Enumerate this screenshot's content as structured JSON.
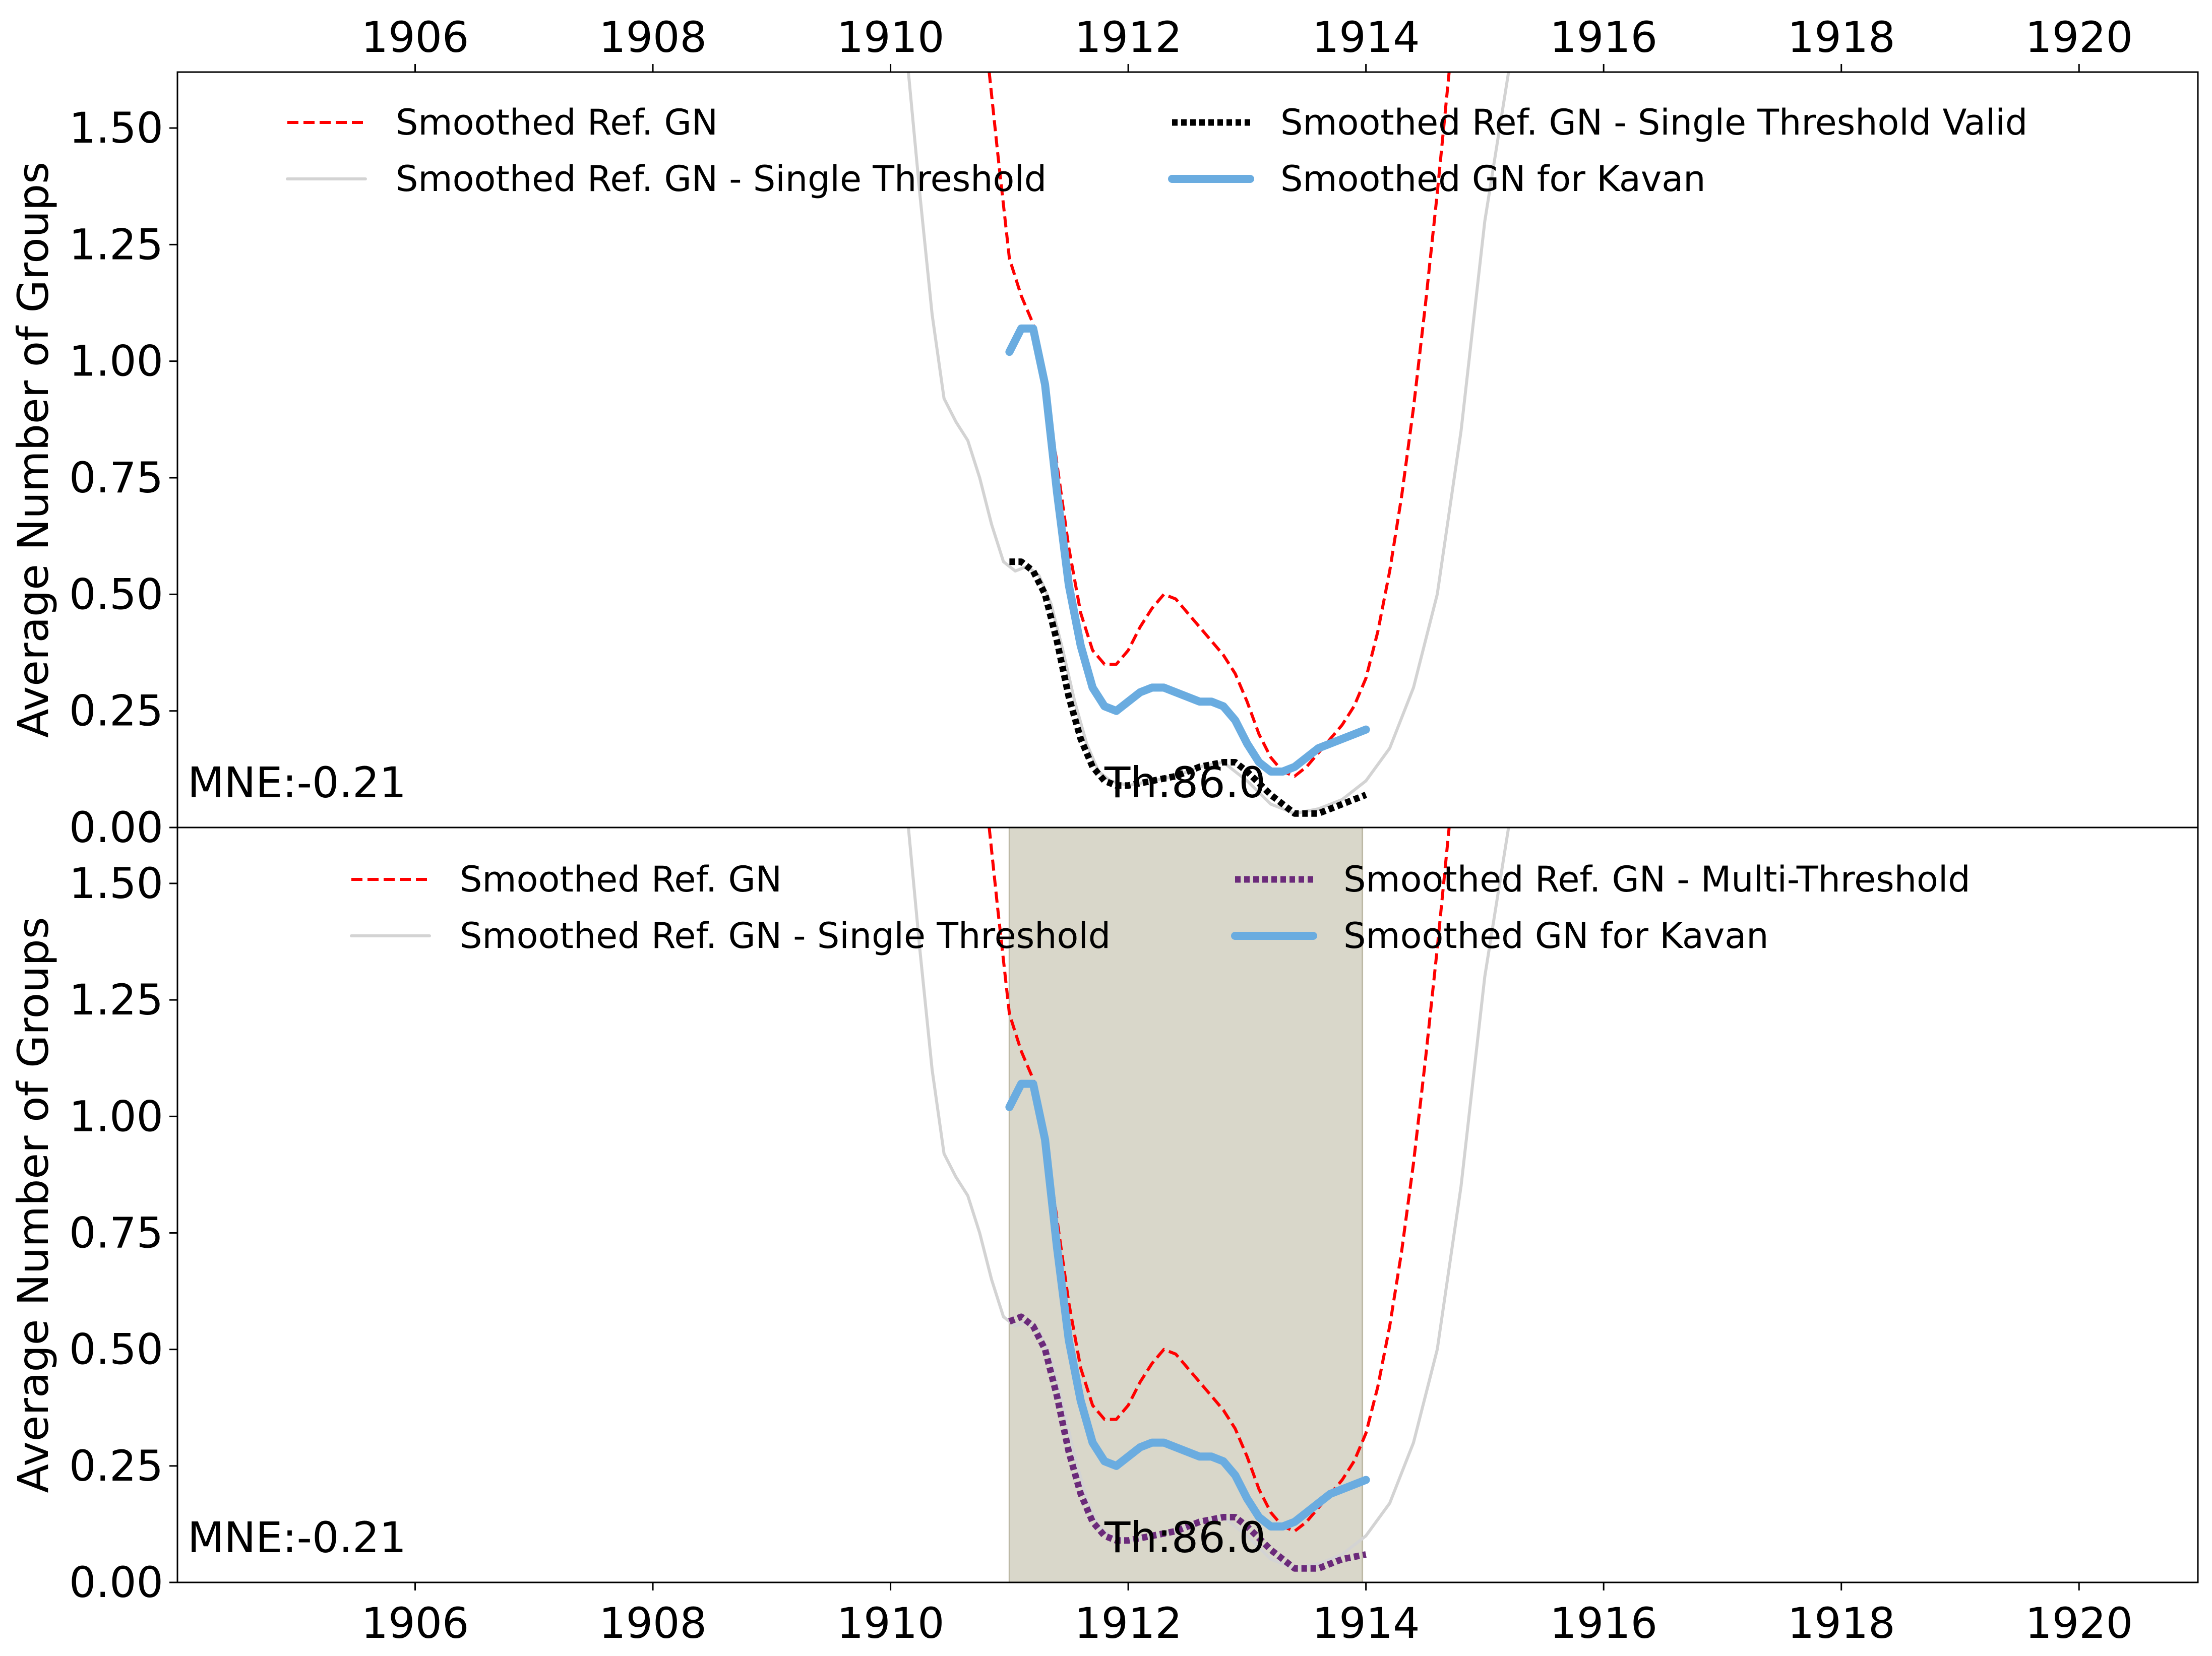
{
  "chart_data": [
    {
      "type": "line",
      "panel": "top",
      "ylabel": "Average Number of Groups",
      "xlim": [
        1904.0,
        1921.0
      ],
      "ylim": [
        0.0,
        1.62
      ],
      "xticks": [
        "1906",
        "1908",
        "1910",
        "1912",
        "1914",
        "1916",
        "1918",
        "1920"
      ],
      "yticks": [
        "0.00",
        "0.25",
        "0.50",
        "0.75",
        "1.00",
        "1.25",
        "1.50"
      ],
      "xtick_position": "top",
      "legend": {
        "placement": "top",
        "entries": [
          {
            "label": "Smoothed Ref. GN",
            "style": "dashed",
            "color": "#ff0000"
          },
          {
            "label": "Smoothed Ref. GN - Single Threshold",
            "style": "solid",
            "color": "#d3d3d3"
          },
          {
            "label": "Smoothed Ref. GN - Single Threshold Valid",
            "style": "dotted",
            "color": "#000000"
          },
          {
            "label": "Smoothed GN for Kavan",
            "style": "solid-thick",
            "color": "#6aace0"
          }
        ]
      },
      "annotations": {
        "mne": "MNE:-0.21",
        "threshold": "Th:86.0"
      },
      "series": [
        {
          "name": "Smoothed Ref. GN",
          "color": "#ff0000",
          "x": [
            1910.83,
            1910.9,
            1911.0,
            1911.1,
            1911.2,
            1911.3,
            1911.4,
            1911.5,
            1911.6,
            1911.7,
            1911.8,
            1911.9,
            1912.0,
            1912.1,
            1912.2,
            1912.3,
            1912.4,
            1912.5,
            1912.6,
            1912.7,
            1912.8,
            1912.9,
            1913.0,
            1913.1,
            1913.2,
            1913.3,
            1913.4,
            1913.5,
            1913.6,
            1913.7,
            1913.8,
            1913.9,
            1914.0,
            1914.1,
            1914.2,
            1914.3,
            1914.4,
            1914.5,
            1914.6,
            1914.7
          ],
          "y": [
            1.62,
            1.45,
            1.22,
            1.14,
            1.08,
            0.96,
            0.78,
            0.6,
            0.46,
            0.38,
            0.35,
            0.35,
            0.38,
            0.43,
            0.47,
            0.5,
            0.49,
            0.46,
            0.43,
            0.4,
            0.37,
            0.33,
            0.27,
            0.2,
            0.15,
            0.12,
            0.11,
            0.13,
            0.16,
            0.19,
            0.22,
            0.26,
            0.32,
            0.42,
            0.55,
            0.71,
            0.9,
            1.12,
            1.36,
            1.62
          ]
        },
        {
          "name": "Smoothed Ref. GN - Single Threshold",
          "color": "#d3d3d3",
          "x": [
            1910.15,
            1910.25,
            1910.35,
            1910.45,
            1910.55,
            1910.65,
            1910.75,
            1910.85,
            1910.95,
            1911.05,
            1911.15,
            1911.25,
            1911.35,
            1911.45,
            1911.55,
            1911.65,
            1911.75,
            1911.85,
            1912.0,
            1912.2,
            1912.4,
            1912.6,
            1912.8,
            1913.0,
            1913.2,
            1913.4,
            1913.6,
            1913.8,
            1914.0,
            1914.2,
            1914.4,
            1914.6,
            1914.8,
            1915.0,
            1915.2
          ],
          "y": [
            1.62,
            1.35,
            1.1,
            0.92,
            0.87,
            0.83,
            0.75,
            0.65,
            0.57,
            0.55,
            0.56,
            0.54,
            0.48,
            0.38,
            0.27,
            0.18,
            0.12,
            0.1,
            0.09,
            0.1,
            0.11,
            0.13,
            0.14,
            0.1,
            0.05,
            0.03,
            0.04,
            0.06,
            0.1,
            0.17,
            0.3,
            0.5,
            0.85,
            1.3,
            1.62
          ]
        },
        {
          "name": "Smoothed Ref. GN - Single Threshold Valid",
          "color": "#000000",
          "x": [
            1911.0,
            1911.1,
            1911.2,
            1911.3,
            1911.4,
            1911.5,
            1911.6,
            1911.7,
            1911.8,
            1911.9,
            1912.0,
            1912.2,
            1912.4,
            1912.6,
            1912.8,
            1912.9,
            1913.0,
            1913.2,
            1913.4,
            1913.6,
            1913.8,
            1914.0
          ],
          "y": [
            0.57,
            0.57,
            0.55,
            0.5,
            0.4,
            0.28,
            0.19,
            0.13,
            0.1,
            0.09,
            0.09,
            0.1,
            0.11,
            0.13,
            0.14,
            0.14,
            0.12,
            0.07,
            0.03,
            0.03,
            0.05,
            0.07
          ]
        },
        {
          "name": "Smoothed GN for Kavan",
          "color": "#6aace0",
          "x": [
            1911.0,
            1911.1,
            1911.2,
            1911.3,
            1911.4,
            1911.5,
            1911.6,
            1911.7,
            1911.8,
            1911.9,
            1912.0,
            1912.1,
            1912.2,
            1912.3,
            1912.4,
            1912.5,
            1912.6,
            1912.7,
            1912.8,
            1912.9,
            1913.0,
            1913.1,
            1913.2,
            1913.3,
            1913.4,
            1913.5,
            1913.6,
            1913.7,
            1913.8,
            1913.9,
            1914.0
          ],
          "y": [
            1.02,
            1.07,
            1.07,
            0.95,
            0.72,
            0.52,
            0.39,
            0.3,
            0.26,
            0.25,
            0.27,
            0.29,
            0.3,
            0.3,
            0.29,
            0.28,
            0.27,
            0.27,
            0.26,
            0.23,
            0.18,
            0.14,
            0.12,
            0.12,
            0.13,
            0.15,
            0.17,
            0.18,
            0.19,
            0.2,
            0.21
          ]
        }
      ]
    },
    {
      "type": "line",
      "panel": "bottom",
      "ylabel": "Average Number of Groups",
      "xlim": [
        1904.0,
        1921.0
      ],
      "ylim": [
        0.0,
        1.62
      ],
      "xticks": [
        "1906",
        "1908",
        "1910",
        "1912",
        "1914",
        "1916",
        "1918",
        "1920"
      ],
      "yticks": [
        "0.00",
        "0.25",
        "0.50",
        "0.75",
        "1.00",
        "1.25",
        "1.50"
      ],
      "xtick_position": "bottom",
      "shaded_span": [
        1911.0,
        1913.97
      ],
      "shade_color": "#d9d7ca",
      "legend": {
        "placement": "top",
        "entries": [
          {
            "label": "Smoothed Ref. GN",
            "style": "dashed",
            "color": "#ff0000"
          },
          {
            "label": "Smoothed Ref. GN - Single Threshold",
            "style": "solid",
            "color": "#d3d3d3"
          },
          {
            "label": "Smoothed Ref. GN - Multi-Threshold",
            "style": "dotted",
            "color": "#6b2a7a"
          },
          {
            "label": "Smoothed GN for Kavan",
            "style": "solid-thick",
            "color": "#6aace0"
          }
        ]
      },
      "annotations": {
        "mne": "MNE:-0.21",
        "threshold": "Th:86.0"
      },
      "series": [
        {
          "name": "Smoothed Ref. GN",
          "color": "#ff0000",
          "x": [
            1910.83,
            1910.9,
            1911.0,
            1911.1,
            1911.2,
            1911.3,
            1911.4,
            1911.5,
            1911.6,
            1911.7,
            1911.8,
            1911.9,
            1912.0,
            1912.1,
            1912.2,
            1912.3,
            1912.4,
            1912.5,
            1912.6,
            1912.7,
            1912.8,
            1912.9,
            1913.0,
            1913.1,
            1913.2,
            1913.3,
            1913.4,
            1913.5,
            1913.6,
            1913.7,
            1913.8,
            1913.9,
            1914.0,
            1914.1,
            1914.2,
            1914.3,
            1914.4,
            1914.5,
            1914.6,
            1914.7
          ],
          "y": [
            1.62,
            1.45,
            1.22,
            1.14,
            1.08,
            0.96,
            0.78,
            0.6,
            0.46,
            0.38,
            0.35,
            0.35,
            0.38,
            0.43,
            0.47,
            0.5,
            0.49,
            0.46,
            0.43,
            0.4,
            0.37,
            0.33,
            0.27,
            0.2,
            0.15,
            0.12,
            0.11,
            0.13,
            0.16,
            0.19,
            0.22,
            0.26,
            0.32,
            0.42,
            0.55,
            0.71,
            0.9,
            1.12,
            1.36,
            1.62
          ]
        },
        {
          "name": "Smoothed Ref. GN - Single Threshold",
          "color": "#d3d3d3",
          "x": [
            1910.15,
            1910.25,
            1910.35,
            1910.45,
            1910.55,
            1910.65,
            1910.75,
            1910.85,
            1910.95,
            1911.05,
            1911.15,
            1911.25,
            1911.35,
            1911.45,
            1911.55,
            1911.65,
            1911.75,
            1911.85,
            1912.0,
            1912.2,
            1912.4,
            1912.6,
            1912.8,
            1913.0,
            1913.2,
            1913.4,
            1913.6,
            1913.8,
            1914.0,
            1914.2,
            1914.4,
            1914.6,
            1914.8,
            1915.0,
            1915.2
          ],
          "y": [
            1.62,
            1.35,
            1.1,
            0.92,
            0.87,
            0.83,
            0.75,
            0.65,
            0.57,
            0.55,
            0.56,
            0.54,
            0.48,
            0.38,
            0.27,
            0.18,
            0.12,
            0.1,
            0.09,
            0.1,
            0.11,
            0.13,
            0.14,
            0.1,
            0.05,
            0.03,
            0.04,
            0.06,
            0.1,
            0.17,
            0.3,
            0.5,
            0.85,
            1.3,
            1.62
          ]
        },
        {
          "name": "Smoothed Ref. GN - Multi-Threshold",
          "color": "#6b2a7a",
          "x": [
            1911.0,
            1911.1,
            1911.2,
            1911.3,
            1911.4,
            1911.5,
            1911.6,
            1911.7,
            1911.8,
            1911.9,
            1912.0,
            1912.2,
            1912.4,
            1912.6,
            1912.8,
            1912.9,
            1913.0,
            1913.2,
            1913.4,
            1913.6,
            1913.8,
            1914.0
          ],
          "y": [
            0.56,
            0.57,
            0.55,
            0.5,
            0.4,
            0.28,
            0.19,
            0.13,
            0.1,
            0.09,
            0.09,
            0.1,
            0.11,
            0.13,
            0.14,
            0.14,
            0.12,
            0.07,
            0.03,
            0.03,
            0.05,
            0.06
          ]
        },
        {
          "name": "Smoothed GN for Kavan",
          "color": "#6aace0",
          "x": [
            1911.0,
            1911.1,
            1911.2,
            1911.3,
            1911.4,
            1911.5,
            1911.6,
            1911.7,
            1911.8,
            1911.9,
            1912.0,
            1912.1,
            1912.2,
            1912.3,
            1912.4,
            1912.5,
            1912.6,
            1912.7,
            1912.8,
            1912.9,
            1913.0,
            1913.1,
            1913.2,
            1913.3,
            1913.4,
            1913.5,
            1913.6,
            1913.7,
            1913.8,
            1913.9,
            1914.0
          ],
          "y": [
            1.02,
            1.07,
            1.07,
            0.95,
            0.72,
            0.52,
            0.39,
            0.3,
            0.26,
            0.25,
            0.27,
            0.29,
            0.3,
            0.3,
            0.29,
            0.28,
            0.27,
            0.27,
            0.26,
            0.23,
            0.18,
            0.14,
            0.12,
            0.12,
            0.13,
            0.15,
            0.17,
            0.19,
            0.2,
            0.21,
            0.22
          ]
        }
      ]
    }
  ]
}
